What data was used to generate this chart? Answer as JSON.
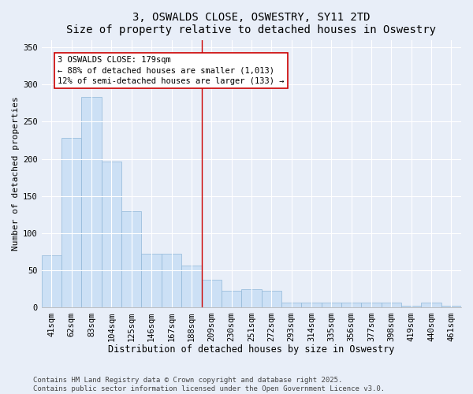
{
  "title": "3, OSWALDS CLOSE, OSWESTRY, SY11 2TD",
  "subtitle": "Size of property relative to detached houses in Oswestry",
  "xlabel": "Distribution of detached houses by size in Oswestry",
  "ylabel": "Number of detached properties",
  "categories": [
    "41sqm",
    "62sqm",
    "83sqm",
    "104sqm",
    "125sqm",
    "146sqm",
    "167sqm",
    "188sqm",
    "209sqm",
    "230sqm",
    "251sqm",
    "272sqm",
    "293sqm",
    "314sqm",
    "335sqm",
    "356sqm",
    "377sqm",
    "398sqm",
    "419sqm",
    "440sqm",
    "461sqm"
  ],
  "values": [
    70,
    228,
    283,
    196,
    130,
    73,
    73,
    57,
    38,
    23,
    25,
    23,
    7,
    7,
    7,
    7,
    7,
    7,
    3,
    7,
    3
  ],
  "bar_color": "#cce0f5",
  "bar_edge_color": "#90b8d8",
  "property_line_x": 7.5,
  "property_line_color": "#cc0000",
  "annotation_text": "3 OSWALDS CLOSE: 179sqm\n← 88% of detached houses are smaller (1,013)\n12% of semi-detached houses are larger (133) →",
  "annotation_box_color": "#cc0000",
  "ylim": [
    0,
    360
  ],
  "yticks": [
    0,
    50,
    100,
    150,
    200,
    250,
    300,
    350
  ],
  "background_color": "#e8eef8",
  "grid_color": "#ffffff",
  "footer_text": "Contains HM Land Registry data © Crown copyright and database right 2025.\nContains public sector information licensed under the Open Government Licence v3.0.",
  "title_fontsize": 10,
  "xlabel_fontsize": 8.5,
  "ylabel_fontsize": 8,
  "tick_fontsize": 7.5,
  "annotation_fontsize": 7.5,
  "footer_fontsize": 6.5
}
